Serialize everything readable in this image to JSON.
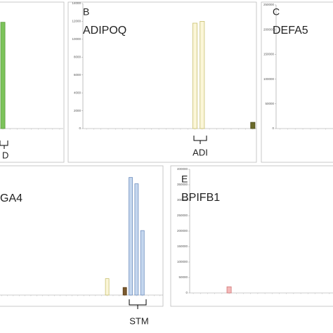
{
  "chart_data": [
    {
      "type": "bar",
      "ylim": [
        0,
        100
      ],
      "values": [
        85,
        0,
        0,
        0,
        0,
        0,
        0,
        0,
        0
      ],
      "colors": [
        "#7cc35a",
        null,
        null,
        null,
        null,
        null,
        null,
        null,
        null
      ],
      "annotation": "D"
    },
    {
      "type": "bar",
      "title": "B",
      "subtitle": "ADIPOQ",
      "ylim": [
        0,
        14000
      ],
      "yticks": [
        0,
        2000,
        4000,
        6000,
        8000,
        10000,
        12000,
        14000
      ],
      "values": [
        0,
        0,
        0,
        0,
        0,
        0,
        0,
        0,
        0,
        0,
        0,
        0,
        0,
        0,
        0,
        11800,
        12000,
        0,
        0,
        0,
        0,
        0,
        0,
        700
      ],
      "colors": [
        null,
        null,
        null,
        null,
        null,
        null,
        null,
        null,
        null,
        null,
        null,
        null,
        null,
        null,
        null,
        "#fbf6d8",
        "#fbf6d8",
        null,
        null,
        null,
        null,
        null,
        null,
        "#6b6b2a"
      ],
      "annotation": "ADI"
    },
    {
      "type": "bar",
      "title": "C",
      "subtitle": "DEFA5",
      "ylim": [
        0,
        250000
      ],
      "yticks": [
        0,
        50000,
        100000,
        150000,
        200000,
        250000
      ],
      "values": [
        0,
        0,
        0,
        0,
        0,
        0,
        0,
        0
      ],
      "colors": [
        null,
        null,
        null,
        null,
        null,
        null,
        null,
        null
      ]
    },
    {
      "type": "bar",
      "subtitle": "GA4",
      "ylim": [
        0,
        100
      ],
      "values": [
        0,
        0,
        0,
        0,
        0,
        0,
        0,
        0,
        0,
        0,
        0,
        0,
        0,
        0,
        0,
        0,
        0,
        0,
        13,
        0,
        0,
        6,
        93,
        88,
        51,
        0,
        0,
        0
      ],
      "colors": [
        null,
        null,
        null,
        null,
        null,
        null,
        null,
        null,
        null,
        null,
        null,
        null,
        null,
        null,
        null,
        null,
        null,
        null,
        "#fbf6d8",
        null,
        null,
        "#7a5a30",
        "#c5d7ee",
        "#c5d7ee",
        "#c5d7ee",
        null,
        null,
        null
      ],
      "annotation": "STM"
    },
    {
      "type": "bar",
      "title": "E",
      "subtitle": "BPIFB1",
      "ylim": [
        0,
        400000
      ],
      "yticks": [
        0,
        50000,
        100000,
        150000,
        200000,
        250000,
        300000,
        350000,
        400000
      ],
      "values": [
        0,
        0,
        0,
        0,
        0,
        20000,
        0,
        0,
        0,
        0,
        0,
        0,
        0,
        0,
        0,
        0,
        0,
        0,
        0,
        0
      ],
      "colors": [
        null,
        null,
        null,
        null,
        null,
        "#f4b8b8",
        null,
        null,
        null,
        null,
        null,
        null,
        null,
        null,
        null,
        null,
        null,
        null,
        null,
        null
      ]
    }
  ]
}
